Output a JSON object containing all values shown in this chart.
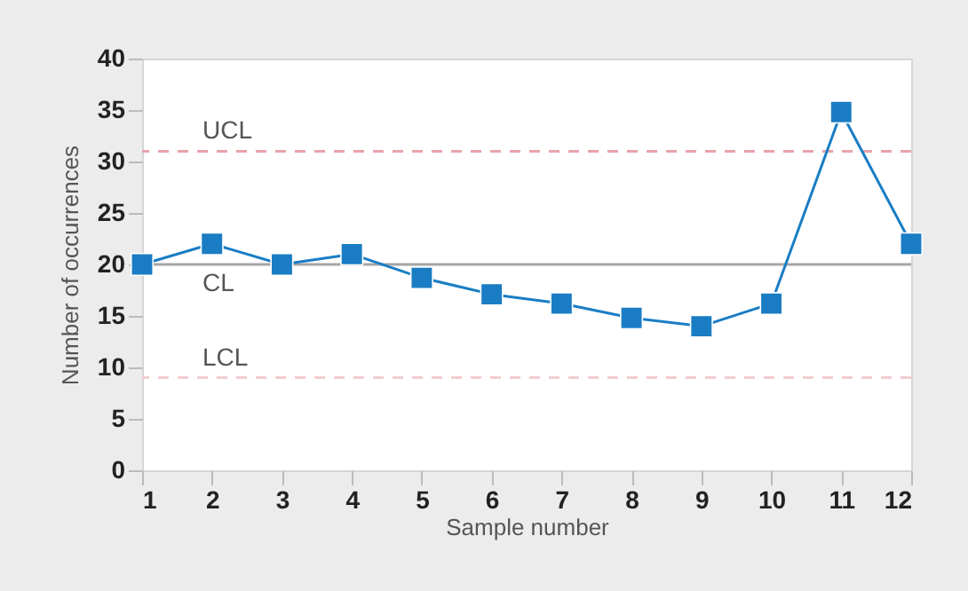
{
  "chart_data": {
    "type": "line",
    "xlabel": "Sample number",
    "ylabel": "Number of occurrences",
    "x": [
      1,
      2,
      3,
      4,
      5,
      6,
      7,
      8,
      9,
      10,
      11,
      12
    ],
    "series": [
      {
        "color": "#1a7dc4",
        "values": [
          20,
          22,
          20,
          21,
          18.7,
          17.1,
          16.2,
          14.8,
          14,
          16.2,
          34.8,
          22
        ]
      }
    ],
    "xlim": [
      1,
      12
    ],
    "xticks": [
      1,
      2,
      3,
      4,
      5,
      6,
      7,
      8,
      9,
      10,
      11,
      12
    ],
    "ylim": [
      0,
      40
    ],
    "yticks": [
      0,
      5,
      10,
      15,
      20,
      25,
      30,
      35,
      40
    ],
    "ref_lines": [
      {
        "axis": "y",
        "value": 31,
        "label": "UCL",
        "color": "#e8a3ab",
        "line_style": "dashed"
      },
      {
        "axis": "y",
        "value": 20,
        "label": "CL",
        "color": "#a6a6a6",
        "line_style": "solid"
      },
      {
        "axis": "y",
        "value": 9,
        "label": "LCL",
        "color": "#f3cdd1",
        "line_style": "dashed"
      }
    ],
    "marker": "square"
  }
}
